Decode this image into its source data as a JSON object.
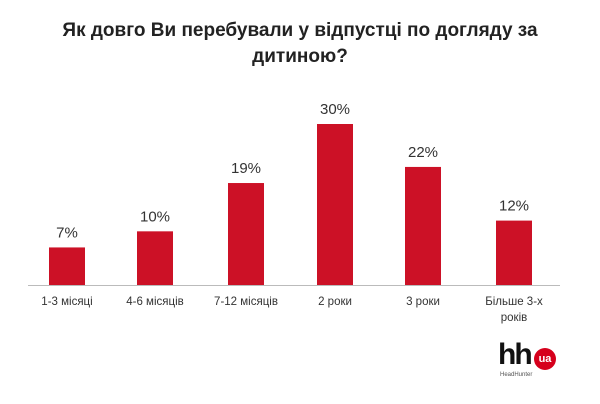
{
  "chart_data": {
    "type": "bar",
    "title": "Як довго Ви перебували у відпустці по догляду за дитиною?",
    "categories": [
      "1-3 місяці",
      "4-6 місяців",
      "7-12 місяців",
      "2 роки",
      "3 роки",
      "Більше 3-х років"
    ],
    "values": [
      7,
      10,
      19,
      30,
      22,
      12
    ],
    "value_labels": [
      "7%",
      "10%",
      "19%",
      "30%",
      "22%",
      "12%"
    ],
    "color": "#cc1126"
  },
  "logo": {
    "main": "hh",
    "badge": "ua",
    "tagline": "HeadHunter"
  }
}
